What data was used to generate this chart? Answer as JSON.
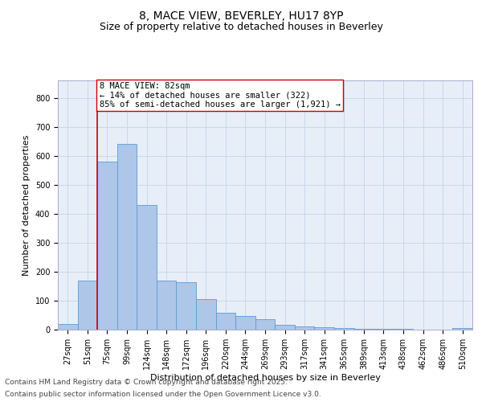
{
  "title_line1": "8, MACE VIEW, BEVERLEY, HU17 8YP",
  "title_line2": "Size of property relative to detached houses in Beverley",
  "xlabel": "Distribution of detached houses by size in Beverley",
  "ylabel": "Number of detached properties",
  "categories": [
    "27sqm",
    "51sqm",
    "75sqm",
    "99sqm",
    "124sqm",
    "148sqm",
    "172sqm",
    "196sqm",
    "220sqm",
    "244sqm",
    "269sqm",
    "293sqm",
    "317sqm",
    "341sqm",
    "365sqm",
    "389sqm",
    "413sqm",
    "438sqm",
    "462sqm",
    "486sqm",
    "510sqm"
  ],
  "values": [
    20,
    170,
    580,
    640,
    430,
    170,
    165,
    105,
    58,
    48,
    35,
    16,
    12,
    8,
    6,
    4,
    2,
    2,
    1,
    1,
    5
  ],
  "bar_color": "#aec6e8",
  "bar_edge_color": "#5b9bd5",
  "vline_color": "#cc0000",
  "vline_x": 1.5,
  "annotation_text_line1": "8 MACE VIEW: 82sqm",
  "annotation_text_line2": "← 14% of detached houses are smaller (322)",
  "annotation_text_line3": "85% of semi-detached houses are larger (1,921) →",
  "annotation_box_edge_color": "#cc0000",
  "annotation_box_face_color": "#ffffff",
  "ylim": [
    0,
    860
  ],
  "yticks": [
    0,
    100,
    200,
    300,
    400,
    500,
    600,
    700,
    800
  ],
  "grid_color": "#c8d8ea",
  "background_color": "#e8eef8",
  "footer_line1": "Contains HM Land Registry data © Crown copyright and database right 2025.",
  "footer_line2": "Contains public sector information licensed under the Open Government Licence v3.0.",
  "title_fontsize": 10,
  "subtitle_fontsize": 9,
  "axis_label_fontsize": 8,
  "tick_fontsize": 7,
  "annotation_fontsize": 7.5,
  "footer_fontsize": 6.5
}
